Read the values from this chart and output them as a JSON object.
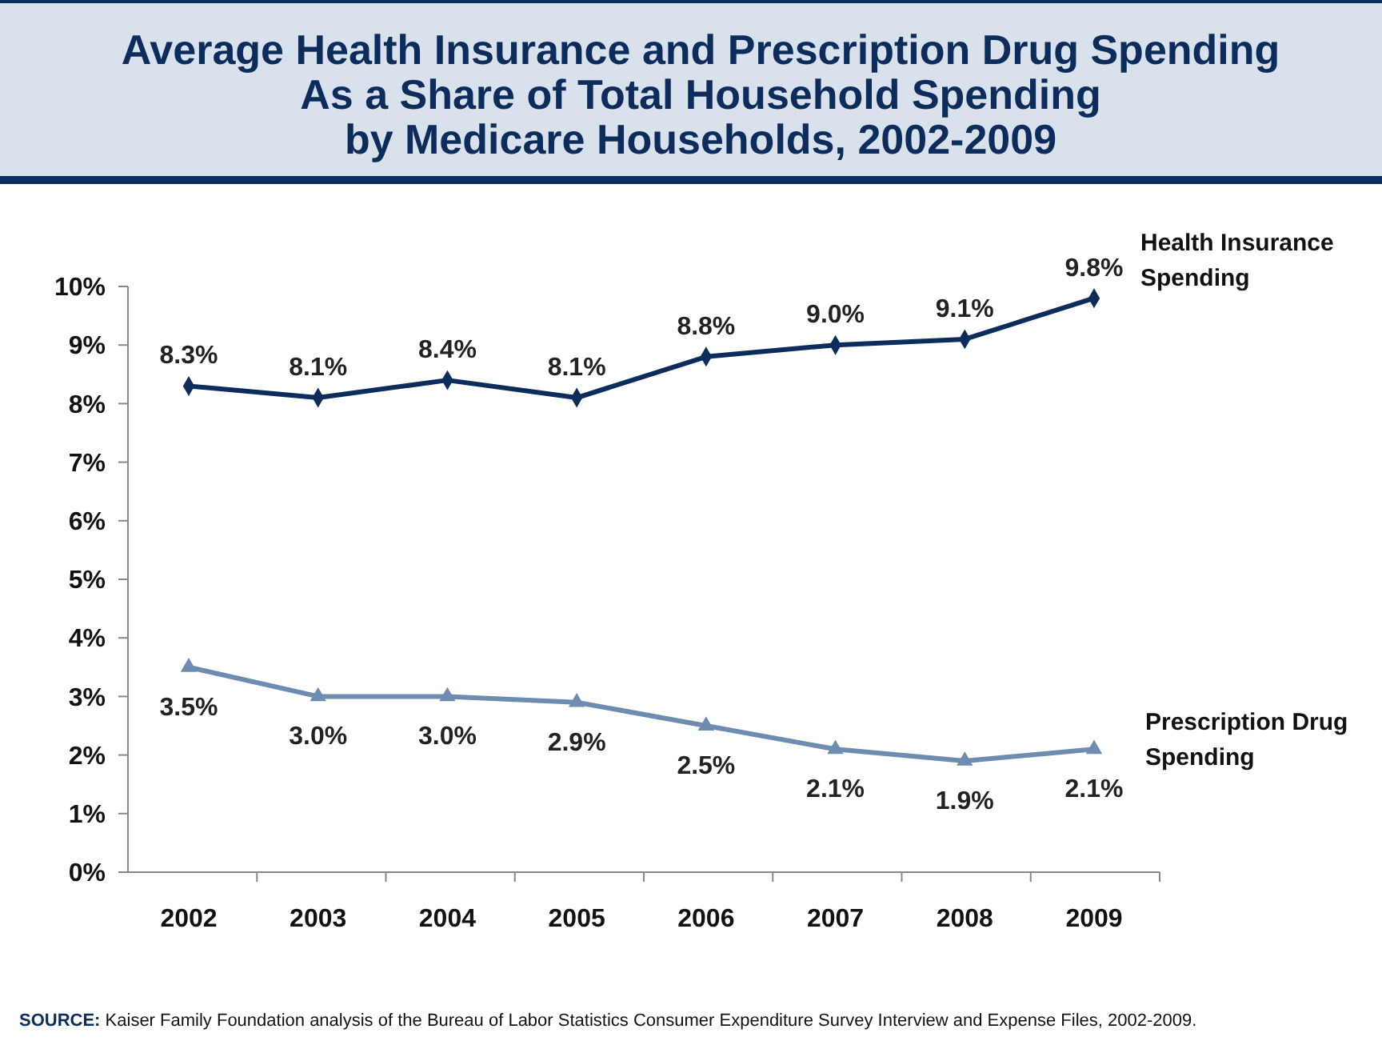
{
  "chart_data": {
    "type": "line",
    "title": "Average Health Insurance and Prescription Drug Spending\nAs a Share of Total Household Spending\nby Medicare Households, 2002-2009",
    "categories": [
      "2002",
      "2003",
      "2004",
      "2005",
      "2006",
      "2007",
      "2008",
      "2009"
    ],
    "series": [
      {
        "name": "Health Insurance\nSpending",
        "color": "#0c2d5c",
        "marker": "diamond",
        "values": [
          8.3,
          8.1,
          8.4,
          8.1,
          8.8,
          9.0,
          9.1,
          9.8
        ],
        "value_labels": [
          "8.3%",
          "8.1%",
          "8.4%",
          "8.1%",
          "8.8%",
          "9.0%",
          "9.1%",
          "9.8%"
        ]
      },
      {
        "name": "Prescription Drug\nSpending",
        "color": "#6d8cb0",
        "marker": "triangle",
        "values": [
          3.5,
          3.0,
          3.0,
          2.9,
          2.5,
          2.1,
          1.9,
          2.1
        ],
        "value_labels": [
          "3.5%",
          "3.0%",
          "3.0%",
          "2.9%",
          "2.5%",
          "2.1%",
          "1.9%",
          "2.1%"
        ]
      }
    ],
    "ylim": [
      0,
      10
    ],
    "yticks": [
      {
        "value": 0,
        "label": "0%"
      },
      {
        "value": 1,
        "label": "1%"
      },
      {
        "value": 2,
        "label": "2%"
      },
      {
        "value": 3,
        "label": "3%"
      },
      {
        "value": 4,
        "label": "4%"
      },
      {
        "value": 5,
        "label": "5%"
      },
      {
        "value": 6,
        "label": "6%"
      },
      {
        "value": 7,
        "label": "7%"
      },
      {
        "value": 8,
        "label": "8%"
      },
      {
        "value": 9,
        "label": "9%"
      },
      {
        "value": 10,
        "label": "10%"
      }
    ],
    "grid": false,
    "annotations": [
      "SOURCE: Kaiser Family Foundation analysis of the Bureau of Labor Statistics Consumer Expenditure Survey Interview and Expense Files, 2002-2009."
    ]
  }
}
